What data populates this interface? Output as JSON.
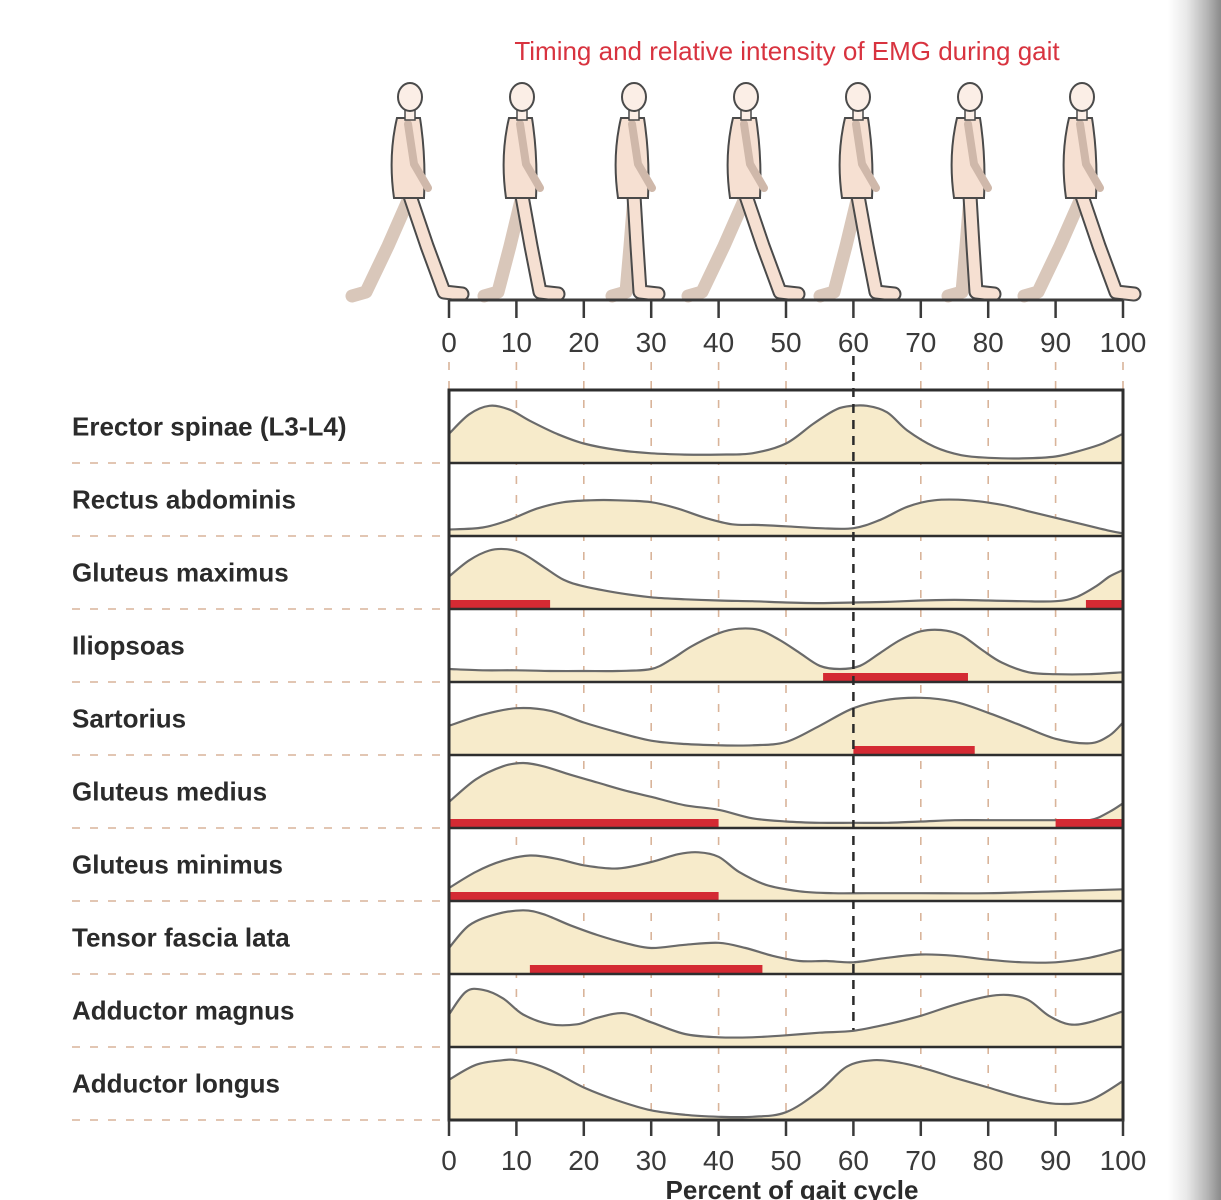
{
  "chart_data": {
    "type": "area",
    "title": "Timing and relative intensity of EMG during gait",
    "xlabel": "Percent of gait cycle",
    "xlim": [
      0,
      100
    ],
    "xticks": [
      0,
      10,
      20,
      30,
      40,
      50,
      60,
      70,
      80,
      90,
      100
    ],
    "ylim": [
      0,
      1
    ],
    "reference_line_x": 60,
    "grid": "vertical dashed lines every 10%",
    "colors": {
      "fill": "#f7ebcb",
      "outline": "#6a6a6a",
      "active_bar": "#d42a33",
      "title": "#d8333f",
      "grid": "#d9b49a"
    },
    "figures": 7,
    "series": [
      {
        "name": "Erector spinae (L3-L4)",
        "x": [
          0,
          3,
          6,
          9,
          12,
          16,
          20,
          25,
          30,
          35,
          40,
          45,
          50,
          54,
          57,
          59,
          62,
          65,
          68,
          72,
          76,
          80,
          85,
          90,
          94,
          97,
          100
        ],
        "y": [
          0.45,
          0.75,
          0.88,
          0.82,
          0.65,
          0.45,
          0.3,
          0.2,
          0.15,
          0.13,
          0.13,
          0.15,
          0.3,
          0.6,
          0.8,
          0.87,
          0.88,
          0.78,
          0.5,
          0.25,
          0.12,
          0.08,
          0.07,
          0.1,
          0.2,
          0.3,
          0.45
        ],
        "active": []
      },
      {
        "name": "Rectus abdominis",
        "x": [
          0,
          5,
          9,
          13,
          17,
          21,
          25,
          30,
          34,
          38,
          42,
          46,
          50,
          55,
          60,
          64,
          68,
          72,
          77,
          82,
          86,
          90,
          94,
          98,
          100
        ],
        "y": [
          0.1,
          0.13,
          0.25,
          0.42,
          0.52,
          0.55,
          0.55,
          0.52,
          0.42,
          0.28,
          0.18,
          0.17,
          0.15,
          0.12,
          0.12,
          0.25,
          0.45,
          0.55,
          0.55,
          0.48,
          0.38,
          0.28,
          0.18,
          0.08,
          0.04
        ],
        "active": []
      },
      {
        "name": "Gluteus maximus",
        "x": [
          0,
          3,
          6,
          8.5,
          11,
          14,
          17,
          20,
          25,
          30,
          35,
          40,
          45,
          50,
          55,
          60,
          65,
          70,
          75,
          80,
          85,
          90,
          93,
          96,
          98,
          100
        ],
        "y": [
          0.5,
          0.75,
          0.9,
          0.92,
          0.85,
          0.65,
          0.45,
          0.35,
          0.25,
          0.18,
          0.15,
          0.13,
          0.12,
          0.1,
          0.09,
          0.1,
          0.11,
          0.13,
          0.14,
          0.13,
          0.12,
          0.12,
          0.18,
          0.35,
          0.5,
          0.6
        ],
        "active": [
          [
            0,
            15
          ],
          [
            94.5,
            100
          ]
        ]
      },
      {
        "name": "Iliopsoas",
        "x": [
          0,
          5,
          10,
          15,
          20,
          25,
          30,
          33,
          36,
          40,
          43,
          46,
          49,
          52,
          55,
          58,
          61,
          64,
          67,
          70,
          73,
          76,
          79,
          82,
          86,
          90,
          95,
          100
        ],
        "y": [
          0.2,
          0.18,
          0.18,
          0.17,
          0.17,
          0.17,
          0.2,
          0.35,
          0.55,
          0.75,
          0.82,
          0.8,
          0.65,
          0.45,
          0.25,
          0.2,
          0.25,
          0.45,
          0.65,
          0.78,
          0.8,
          0.72,
          0.5,
          0.3,
          0.15,
          0.12,
          0.12,
          0.15
        ],
        "active": [
          [
            55.5,
            77
          ]
        ]
      },
      {
        "name": "Sartorius",
        "x": [
          0,
          5,
          10,
          15,
          20,
          25,
          30,
          35,
          40,
          45,
          50,
          55,
          60,
          65,
          70,
          75,
          80,
          85,
          90,
          95,
          98,
          100
        ],
        "y": [
          0.45,
          0.62,
          0.72,
          0.68,
          0.5,
          0.35,
          0.22,
          0.17,
          0.15,
          0.15,
          0.2,
          0.45,
          0.72,
          0.85,
          0.88,
          0.82,
          0.65,
          0.45,
          0.25,
          0.18,
          0.3,
          0.5
        ],
        "active": [
          [
            60,
            78
          ]
        ]
      },
      {
        "name": "Gluteus medius",
        "x": [
          0,
          4,
          8,
          11,
          14,
          18,
          22,
          26,
          30,
          35,
          40,
          45,
          50,
          55,
          60,
          65,
          70,
          75,
          80,
          85,
          90,
          95,
          98,
          100
        ],
        "y": [
          0.4,
          0.75,
          0.95,
          1.0,
          0.95,
          0.82,
          0.7,
          0.58,
          0.48,
          0.35,
          0.28,
          0.15,
          0.1,
          0.08,
          0.08,
          0.08,
          0.1,
          0.12,
          0.12,
          0.12,
          0.12,
          0.12,
          0.25,
          0.38
        ],
        "active": [
          [
            0,
            40
          ],
          [
            90,
            100
          ]
        ]
      },
      {
        "name": "Gluteus minimus",
        "x": [
          0,
          4,
          8,
          12,
          16,
          20,
          25,
          30,
          34,
          37,
          40,
          43,
          47,
          52,
          57,
          62,
          70,
          80,
          90,
          100
        ],
        "y": [
          0.2,
          0.45,
          0.62,
          0.7,
          0.65,
          0.55,
          0.5,
          0.6,
          0.72,
          0.75,
          0.68,
          0.45,
          0.25,
          0.15,
          0.12,
          0.12,
          0.12,
          0.12,
          0.15,
          0.18
        ],
        "active": [
          [
            0,
            40
          ]
        ]
      },
      {
        "name": "Tensor fascia lata",
        "x": [
          0,
          3,
          7,
          11,
          14,
          18,
          22,
          26,
          30,
          35,
          40,
          44,
          48,
          52,
          56,
          60,
          65,
          70,
          75,
          80,
          85,
          90,
          95,
          100
        ],
        "y": [
          0.4,
          0.75,
          0.92,
          0.98,
          0.92,
          0.75,
          0.6,
          0.48,
          0.4,
          0.45,
          0.48,
          0.4,
          0.28,
          0.2,
          0.2,
          0.18,
          0.25,
          0.3,
          0.28,
          0.22,
          0.18,
          0.18,
          0.25,
          0.38
        ],
        "active": [
          [
            12,
            46.5
          ]
        ]
      },
      {
        "name": "Adductor magnus",
        "x": [
          0,
          2.5,
          5,
          8,
          11,
          15,
          19,
          22,
          26,
          30,
          35,
          40,
          45,
          50,
          55,
          60,
          65,
          70,
          75,
          80,
          83,
          86,
          89,
          92,
          95,
          100
        ],
        "y": [
          0.5,
          0.85,
          0.88,
          0.75,
          0.5,
          0.35,
          0.35,
          0.45,
          0.52,
          0.38,
          0.2,
          0.15,
          0.15,
          0.18,
          0.22,
          0.25,
          0.35,
          0.48,
          0.65,
          0.78,
          0.8,
          0.72,
          0.48,
          0.35,
          0.38,
          0.55
        ],
        "active": []
      },
      {
        "name": "Adductor longus",
        "x": [
          0,
          4,
          8,
          10,
          13,
          16,
          20,
          25,
          30,
          35,
          40,
          45,
          50,
          55,
          59,
          63,
          67,
          71,
          75,
          80,
          85,
          90,
          95,
          100
        ],
        "y": [
          0.62,
          0.85,
          0.92,
          0.92,
          0.85,
          0.72,
          0.5,
          0.3,
          0.15,
          0.08,
          0.05,
          0.05,
          0.12,
          0.45,
          0.82,
          0.92,
          0.88,
          0.78,
          0.65,
          0.5,
          0.35,
          0.25,
          0.3,
          0.6
        ],
        "active": []
      }
    ]
  }
}
